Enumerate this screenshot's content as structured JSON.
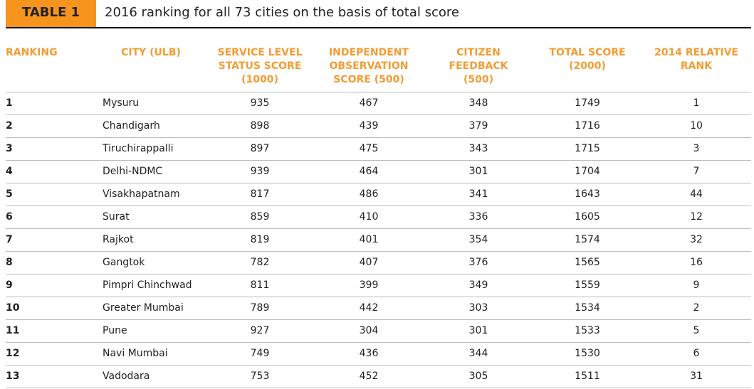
{
  "header": {
    "label": "TABLE 1",
    "title": "2016 ranking for all 73 cities on the basis of total score"
  },
  "table": {
    "columns": [
      [
        "RANKING"
      ],
      [
        "CITY (ULB)"
      ],
      [
        "SERVICE LEVEL",
        "STATUS SCORE",
        "(1000)"
      ],
      [
        "INDEPENDENT",
        "OBSERVATION",
        "SCORE (500)"
      ],
      [
        "CITIZEN",
        "FEEDBACK",
        "(500)"
      ],
      [
        "TOTAL SCORE",
        "(2000)"
      ],
      [
        "2014 RELATIVE",
        "RANK"
      ]
    ],
    "rows": [
      [
        1,
        "Mysuru",
        935,
        467,
        348,
        1749,
        1
      ],
      [
        2,
        "Chandigarh",
        898,
        439,
        379,
        1716,
        10
      ],
      [
        3,
        "Tiruchirappalli",
        897,
        475,
        343,
        1715,
        3
      ],
      [
        4,
        "Delhi-NDMC",
        939,
        464,
        301,
        1704,
        7
      ],
      [
        5,
        "Visakhapatnam",
        817,
        486,
        341,
        1643,
        44
      ],
      [
        6,
        "Surat",
        859,
        410,
        336,
        1605,
        12
      ],
      [
        7,
        "Rajkot",
        819,
        401,
        354,
        1574,
        32
      ],
      [
        8,
        "Gangtok",
        782,
        407,
        376,
        1565,
        16
      ],
      [
        9,
        "Pimpri Chinchwad",
        811,
        399,
        349,
        1559,
        9
      ],
      [
        10,
        "Greater Mumbai",
        789,
        442,
        303,
        1534,
        2
      ],
      [
        11,
        "Pune",
        927,
        304,
        301,
        1533,
        5
      ],
      [
        12,
        "Navi Mumbai",
        749,
        436,
        344,
        1530,
        6
      ],
      [
        13,
        "Vadodara",
        753,
        452,
        305,
        1511,
        31
      ]
    ]
  }
}
